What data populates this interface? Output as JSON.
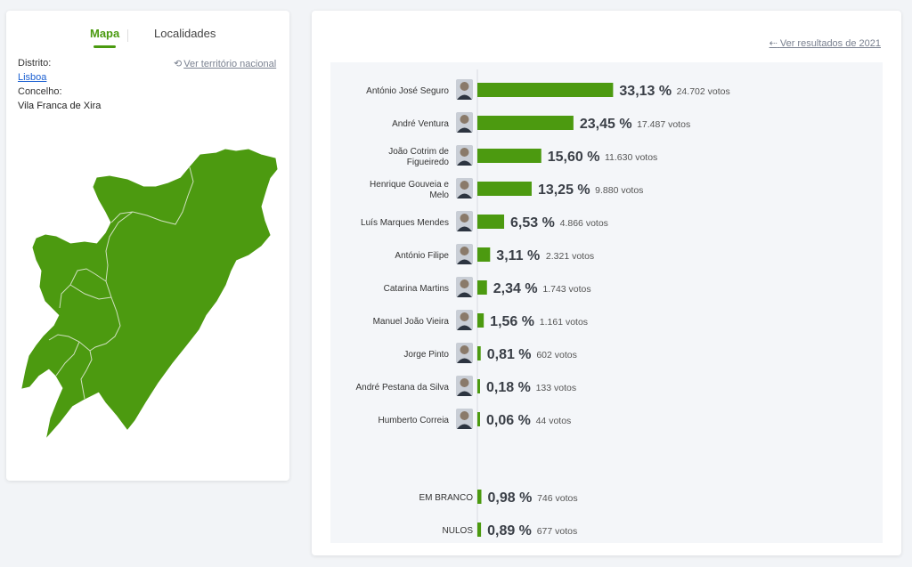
{
  "tabs": {
    "map_label": "Mapa",
    "places_label": "Localidades"
  },
  "filters": {
    "district_label": "Distrito:",
    "district_value": "Lisboa",
    "concelho_label": "Concelho:",
    "concelho_value": "Vila Franca de Xira",
    "national_link": "Ver território nacional"
  },
  "back_link": "Ver resultados de 2021",
  "colors": {
    "accent": "#4a9a0f",
    "bar": "#4c9a10",
    "map_fill": "#4c9a10"
  },
  "icons": {
    "national": "undo-icon",
    "back": "arrow-left-icon",
    "candidate": "avatar-icon"
  },
  "chart_data": {
    "type": "bar",
    "orientation": "horizontal",
    "value_unit": "%",
    "votes_suffix": "votos",
    "grid": false,
    "xlim": [
      0,
      50
    ],
    "candidates": [
      {
        "name": [
          "António José Seguro"
        ],
        "value": 33.13,
        "value_label": "33,13 %",
        "votes": "24.702"
      },
      {
        "name": [
          "André Ventura"
        ],
        "value": 23.45,
        "value_label": "23,45 %",
        "votes": "17.487"
      },
      {
        "name": [
          "João Cotrim de",
          "Figueiredo"
        ],
        "value": 15.6,
        "value_label": "15,60 %",
        "votes": "11.630"
      },
      {
        "name": [
          "Henrique Gouveia e",
          "Melo"
        ],
        "value": 13.25,
        "value_label": "13,25 %",
        "votes": "9.880"
      },
      {
        "name": [
          "Luís Marques Mendes"
        ],
        "value": 6.53,
        "value_label": "6,53 %",
        "votes": "4.866"
      },
      {
        "name": [
          "António Filipe"
        ],
        "value": 3.11,
        "value_label": "3,11 %",
        "votes": "2.321"
      },
      {
        "name": [
          "Catarina Martins"
        ],
        "value": 2.34,
        "value_label": "2,34 %",
        "votes": "1.743"
      },
      {
        "name": [
          "Manuel João Vieira"
        ],
        "value": 1.56,
        "value_label": "1,56 %",
        "votes": "1.161"
      },
      {
        "name": [
          "Jorge Pinto"
        ],
        "value": 0.81,
        "value_label": "0,81 %",
        "votes": "602"
      },
      {
        "name": [
          "André Pestana da Silva"
        ],
        "value": 0.18,
        "value_label": "0,18 %",
        "votes": "133"
      },
      {
        "name": [
          "Humberto Correia"
        ],
        "value": 0.06,
        "value_label": "0,06 %",
        "votes": "44"
      }
    ],
    "others": [
      {
        "name": [
          "EM BRANCO"
        ],
        "value": 0.98,
        "value_label": "0,98 %",
        "votes": "746"
      },
      {
        "name": [
          "NULOS"
        ],
        "value": 0.89,
        "value_label": "0,89 %",
        "votes": "677"
      }
    ]
  }
}
